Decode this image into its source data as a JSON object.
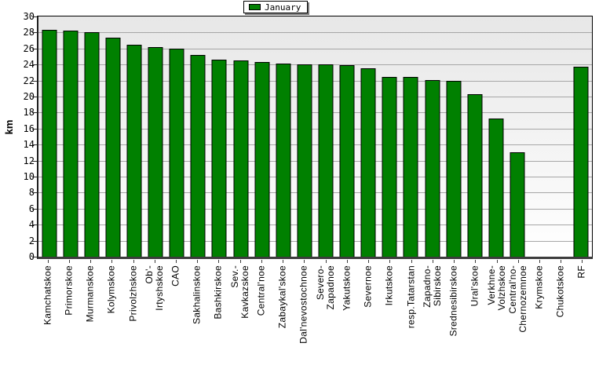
{
  "legend": {
    "label": "January",
    "swatch_color": "#008000"
  },
  "chart_data": {
    "type": "bar",
    "title": "",
    "ylabel": "km",
    "xlabel": "",
    "ylim": [
      0,
      30
    ],
    "y_ticks": [
      0,
      2,
      4,
      6,
      8,
      10,
      12,
      14,
      16,
      18,
      20,
      22,
      24,
      26,
      28,
      30
    ],
    "grid": true,
    "legend_position": "top-center",
    "bar_color": "#008000",
    "plot_bg_gradient": [
      "#e7e7e7",
      "#ffffff"
    ],
    "categories": [
      "Kamchatskoe",
      "Primorskoe",
      "Murmanskoe",
      "Kolymskoe",
      "Privolzhskoe",
      "Ob'-\nIrtyshskoe",
      "CAO",
      "Sakhalinskoe",
      "Bashkirskoe",
      "Sev.-\nKavkazskoe",
      "Central'noe",
      "Zabaykal'skoe",
      "Dal'nevostochnoe",
      "Severo-\nZapadnoe",
      "Yakutskoe",
      "Severnoe",
      "Irkutskoe",
      "resp.Tatarstan",
      "Zapadno-\nSibirskoe",
      "Srednesibirskoe",
      "Ural'skoe",
      "Verkhne-\nVolzhskoe",
      "Central'no-\nChernozemnoe",
      "Krymskoe",
      "Chukotskoe",
      "RF"
    ],
    "series": [
      {
        "name": "January",
        "values": [
          28.3,
          28.2,
          28.0,
          27.4,
          26.5,
          26.2,
          26.0,
          25.2,
          24.6,
          24.5,
          24.3,
          24.1,
          24.0,
          24.0,
          23.9,
          23.5,
          22.5,
          22.5,
          22.1,
          22.0,
          20.3,
          17.3,
          13.0,
          0,
          0,
          23.7
        ]
      }
    ]
  }
}
